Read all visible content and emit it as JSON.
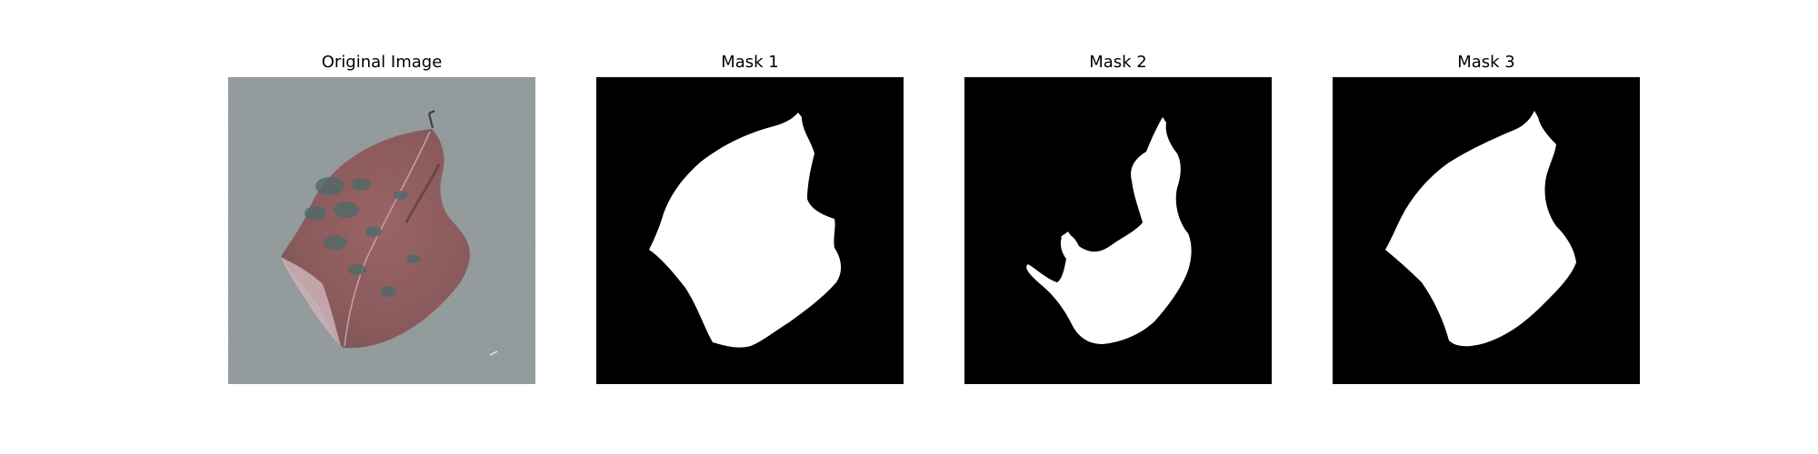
{
  "figure": {
    "panels": [
      {
        "title": "Original Image",
        "kind": "photo",
        "subject": "leaf-photo"
      },
      {
        "title": "Mask 1",
        "kind": "mask",
        "mask_color": "#ffffff",
        "background_color": "#000000"
      },
      {
        "title": "Mask 2",
        "kind": "mask",
        "mask_color": "#ffffff",
        "background_color": "#000000"
      },
      {
        "title": "Mask 3",
        "kind": "mask",
        "mask_color": "#ffffff",
        "background_color": "#000000"
      }
    ]
  },
  "colors": {
    "photo_background": "#8e9798",
    "leaf": "#8e5f60",
    "leaf_spots": "#4f6a68",
    "mask_foreground": "#ffffff",
    "mask_background": "#000000"
  }
}
